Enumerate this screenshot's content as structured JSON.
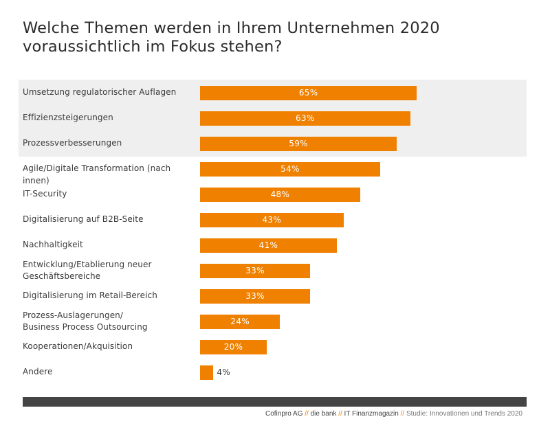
{
  "title_lines": [
    "Welche Themen werden in Ihrem Unternehmen 2020",
    "voraussichtlich im Fokus stehen?"
  ],
  "chart_data": {
    "type": "bar",
    "orientation": "horizontal",
    "title": "Welche Themen werden in Ihrem Unternehmen 2020 voraussichtlich im Fokus stehen?",
    "xlabel": "",
    "ylabel": "",
    "unit": "%",
    "xlim": [
      0,
      100
    ],
    "bar_color": "#f08000",
    "highlight_color": "#efefef",
    "highlighted_count": 3,
    "categories": [
      "Umsetzung regulatorischer Auflagen",
      "Effizienzsteigerungen",
      "Prozessverbesserungen",
      "Agile/Digitale Transformation (nach innen)",
      "IT-Security",
      "Digitalisierung auf B2B-Seite",
      "Nachhaltigkeit",
      "Entwicklung/Etablierung neuer\nGeschäftsbereiche",
      "Digitalisierung im Retail-Bereich",
      "Prozess-Auslagerungen/\nBusiness Process Outsourcing",
      "Kooperationen/Akquisition",
      "Andere"
    ],
    "values": [
      65,
      63,
      59,
      54,
      48,
      43,
      41,
      33,
      33,
      24,
      20,
      4
    ],
    "value_labels": [
      "65%",
      "63%",
      "59%",
      "54%",
      "48%",
      "43%",
      "41%",
      "33%",
      "33%",
      "24%",
      "20%",
      "4%"
    ]
  },
  "source": {
    "parts": [
      "Cofinpro AG",
      "die bank",
      "IT Finanzmagazin",
      "Studie: Innovationen und Trends 2020"
    ],
    "separator": "//"
  }
}
